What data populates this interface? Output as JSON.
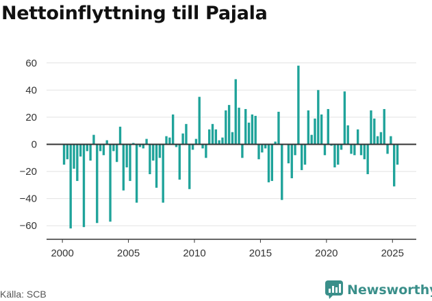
{
  "chart_data": {
    "type": "bar",
    "title": "Nettoinflyttning till Pajala",
    "xlabel": "",
    "ylabel": "",
    "ylim": [
      -70,
      70
    ],
    "yticks": [
      -60,
      -40,
      -20,
      0,
      20,
      40,
      60
    ],
    "xlim": [
      1998.8,
      2026.8
    ],
    "xticks": [
      2000,
      2005,
      2010,
      2015,
      2020,
      2025
    ],
    "grid": "horizontal",
    "legend": "none",
    "bar_color": "#1fa39a",
    "series": [
      {
        "frequency": "quarterly",
        "start": "2000 Q1",
        "values": [
          -15,
          -11,
          -62,
          -18,
          -27,
          -9,
          -61,
          -5,
          -12,
          7,
          -58,
          -5,
          -8,
          3,
          -57,
          -5,
          -13,
          13,
          -34,
          -17,
          -27,
          1,
          -43,
          -2,
          -3,
          4,
          -22,
          -12,
          -32,
          -10,
          -43,
          6,
          5,
          22,
          -2,
          -26,
          8,
          15,
          -33,
          -4,
          4,
          35,
          -3,
          -10,
          11,
          15,
          11,
          3,
          5,
          25,
          29,
          9,
          48,
          27,
          -10,
          26,
          16,
          22,
          21,
          -11,
          -6,
          -3,
          -28,
          -27,
          2,
          24,
          -41,
          0,
          -14,
          -25,
          -8,
          58,
          -19,
          -15,
          25,
          7,
          19,
          40,
          22,
          -8,
          26,
          -1,
          -17,
          -15,
          -4,
          39,
          14,
          -7,
          -8,
          11,
          -8,
          -11,
          -22,
          25,
          19,
          6,
          9,
          26,
          -7,
          6,
          -31,
          -15
        ]
      }
    ]
  },
  "source": "Källa: SCB",
  "brand": {
    "name": "Newsworthy",
    "icon": "newsworthy-logo-icon",
    "color": "#3a8f8a"
  }
}
